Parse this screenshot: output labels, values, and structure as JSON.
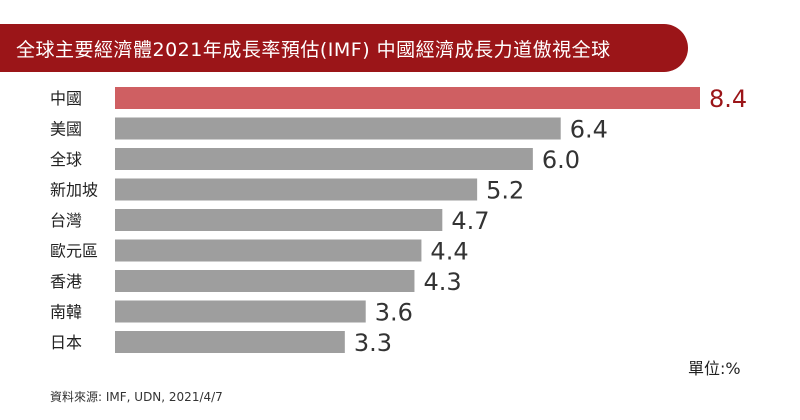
{
  "title": "全球主要經濟體2021年成長率預估(IMF)  中國經濟成長力道傲視全球",
  "unit_label": "單位:%",
  "source": "資料來源: IMF, UDN, 2021/4/7",
  "colors": {
    "banner": "#9b1518",
    "highlight_bar": "#cf5f62",
    "highlight_value": "#9b1518",
    "bar": "#9e9e9e",
    "value_text": "#333333",
    "label_text": "#222222"
  },
  "chart_data": {
    "type": "bar",
    "orientation": "horizontal",
    "categories": [
      "中國",
      "美國",
      "全球",
      "新加坡",
      "台灣",
      "歐元區",
      "香港",
      "南韓",
      "日本"
    ],
    "values": [
      8.4,
      6.4,
      6.0,
      5.2,
      4.7,
      4.4,
      4.3,
      3.6,
      3.3
    ],
    "value_labels": [
      "8.4",
      "6.4",
      "6.0",
      "5.2",
      "4.7",
      "4.4",
      "4.3",
      "3.6",
      "3.3"
    ],
    "highlight_index": 0,
    "xlim": [
      0,
      8.4
    ],
    "grid": false,
    "legend": false
  }
}
